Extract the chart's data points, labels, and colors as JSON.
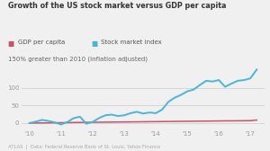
{
  "title": "Growth of the US stock market versus GDP per capita",
  "subtitle": "150% greater than 2010 (inflation adjusted)",
  "legend": [
    "GDP per capita",
    "Stock market index"
  ],
  "gdp_color": "#c9516a",
  "stock_color": "#45b8d8",
  "background_color": "#f0f0f0",
  "yticks": [
    0,
    50,
    100
  ],
  "xtick_labels": [
    "'10",
    "'11",
    "'12",
    "'13",
    "'14",
    "'15",
    "'16",
    "'17"
  ],
  "footer": "ATLAS  |  Data: Federal Reserve Bank of St. Louis, Yahoo Finance",
  "gdp_x": [
    2010.0,
    2010.2,
    2010.4,
    2010.6,
    2010.8,
    2011.0,
    2011.2,
    2011.4,
    2011.6,
    2011.8,
    2012.0,
    2012.2,
    2012.4,
    2012.6,
    2012.8,
    2013.0,
    2013.2,
    2013.4,
    2013.6,
    2013.8,
    2014.0,
    2014.2,
    2014.4,
    2014.6,
    2014.8,
    2015.0,
    2015.2,
    2015.4,
    2015.6,
    2015.8,
    2016.0,
    2016.2,
    2016.4,
    2016.6,
    2016.8,
    2017.0,
    2017.2
  ],
  "gdp_y": [
    0.0,
    0.2,
    0.4,
    0.6,
    0.8,
    1.0,
    1.3,
    1.6,
    1.8,
    2.0,
    2.2,
    2.4,
    2.6,
    2.8,
    3.0,
    3.1,
    3.3,
    3.5,
    3.7,
    3.9,
    4.1,
    4.3,
    4.5,
    4.7,
    4.9,
    5.1,
    5.3,
    5.5,
    5.6,
    5.8,
    6.0,
    6.2,
    6.3,
    6.5,
    6.6,
    6.8,
    8.5
  ],
  "stock_x": [
    2010.0,
    2010.2,
    2010.4,
    2010.6,
    2010.8,
    2011.0,
    2011.2,
    2011.4,
    2011.6,
    2011.8,
    2012.0,
    2012.2,
    2012.4,
    2012.6,
    2012.8,
    2013.0,
    2013.2,
    2013.4,
    2013.6,
    2013.8,
    2014.0,
    2014.2,
    2014.4,
    2014.6,
    2014.8,
    2015.0,
    2015.2,
    2015.4,
    2015.6,
    2015.8,
    2016.0,
    2016.2,
    2016.4,
    2016.6,
    2016.8,
    2017.0,
    2017.2
  ],
  "stock_y": [
    0.0,
    4.0,
    9.0,
    6.0,
    2.0,
    -4.0,
    3.0,
    14.0,
    18.0,
    -2.0,
    3.0,
    14.0,
    22.0,
    24.0,
    20.0,
    22.0,
    28.0,
    32.0,
    27.0,
    30.0,
    28.0,
    38.0,
    60.0,
    72.0,
    80.0,
    90.0,
    95.0,
    108.0,
    120.0,
    118.0,
    122.0,
    103.0,
    112.0,
    120.0,
    122.0,
    127.0,
    152.0
  ],
  "ylim": [
    -15,
    165
  ],
  "xlim": [
    2009.75,
    2017.45
  ]
}
